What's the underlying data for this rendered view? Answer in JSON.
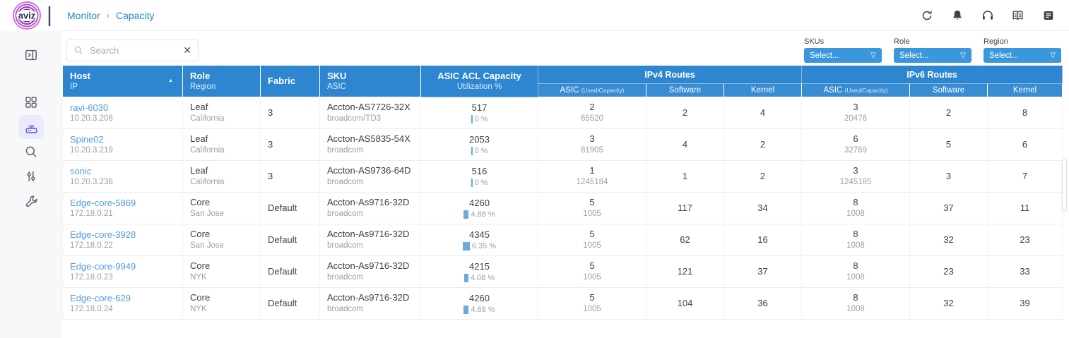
{
  "brand": {
    "name": "aviz"
  },
  "breadcrumb": {
    "items": [
      "Monitor",
      "Capacity"
    ],
    "separator": "›"
  },
  "icons": {
    "sort_asc": "▲",
    "dropdown_arrow": "▽",
    "clear": "✕"
  },
  "toolbar": {
    "search_placeholder": "Search",
    "search_value": "",
    "filters": [
      {
        "label": "SKUs",
        "value": "Select..."
      },
      {
        "label": "Role",
        "value": "Select..."
      },
      {
        "label": "Region",
        "value": "Select..."
      }
    ]
  },
  "table": {
    "header": {
      "host": {
        "main": "Host",
        "sub": "IP"
      },
      "role": {
        "main": "Role",
        "sub": "Region"
      },
      "fabric": {
        "main": "Fabric"
      },
      "sku": {
        "main": "SKU",
        "sub": "ASIC"
      },
      "acl": {
        "main": "ASIC ACL Capacity",
        "sub": "Utilization %"
      },
      "groups": [
        "IPv4 Routes",
        "IPv6 Routes"
      ],
      "sub": {
        "asic": "ASIC",
        "asic_suffix": "(Used/Capacity)",
        "software": "Software",
        "kernel": "Kernel"
      }
    },
    "rows": [
      {
        "host": "ravi-6030",
        "ip": "10.20.3.206",
        "role": "Leaf",
        "region": "California",
        "fabric": "3",
        "sku": "Accton-AS7726-32X",
        "asic": "broadcom/TD3",
        "acl_cap": "517",
        "util_label": "0 %",
        "util_pct": 0,
        "v4": {
          "asic_used": "2",
          "asic_cap": "65520",
          "software": "2",
          "kernel": "4"
        },
        "v6": {
          "asic_used": "3",
          "asic_cap": "20476",
          "software": "2",
          "kernel": "8"
        }
      },
      {
        "host": "Spine02",
        "ip": "10.20.3.219",
        "role": "Leaf",
        "region": "California",
        "fabric": "3",
        "sku": "Accton-AS5835-54X",
        "asic": "broadcom",
        "acl_cap": "2053",
        "util_label": "0 %",
        "util_pct": 0,
        "v4": {
          "asic_used": "3",
          "asic_cap": "81905",
          "software": "4",
          "kernel": "2"
        },
        "v6": {
          "asic_used": "6",
          "asic_cap": "32769",
          "software": "5",
          "kernel": "6"
        }
      },
      {
        "host": "sonic",
        "ip": "10.20.3.236",
        "role": "Leaf",
        "region": "California",
        "fabric": "3",
        "sku": "Accton-AS9736-64D",
        "asic": "broadcom",
        "acl_cap": "516",
        "util_label": "0 %",
        "util_pct": 0,
        "v4": {
          "asic_used": "1",
          "asic_cap": "1245184",
          "software": "1",
          "kernel": "2"
        },
        "v6": {
          "asic_used": "3",
          "asic_cap": "1245185",
          "software": "3",
          "kernel": "7"
        }
      },
      {
        "host": "Edge-core-5869",
        "ip": "172.18.0.21",
        "role": "Core",
        "region": "San Jose",
        "fabric": "Default",
        "sku": "Accton-As9716-32D",
        "asic": "broadcom",
        "acl_cap": "4260",
        "util_label": "4.88 %",
        "util_pct": 4.88,
        "v4": {
          "asic_used": "5",
          "asic_cap": "1005",
          "software": "117",
          "kernel": "34"
        },
        "v6": {
          "asic_used": "8",
          "asic_cap": "1008",
          "software": "37",
          "kernel": "11"
        }
      },
      {
        "host": "Edge-core-3928",
        "ip": "172.18.0.22",
        "role": "Core",
        "region": "San Jose",
        "fabric": "Default",
        "sku": "Accton-As9716-32D",
        "asic": "broadcom",
        "acl_cap": "4345",
        "util_label": "6.35 %",
        "util_pct": 6.35,
        "v4": {
          "asic_used": "5",
          "asic_cap": "1005",
          "software": "62",
          "kernel": "16"
        },
        "v6": {
          "asic_used": "8",
          "asic_cap": "1008",
          "software": "32",
          "kernel": "23"
        }
      },
      {
        "host": "Edge-core-9949",
        "ip": "172.18.0.23",
        "role": "Core",
        "region": "NYK",
        "fabric": "Default",
        "sku": "Accton-As9716-32D",
        "asic": "broadcom",
        "acl_cap": "4215",
        "util_label": "4.08 %",
        "util_pct": 4.08,
        "v4": {
          "asic_used": "5",
          "asic_cap": "1005",
          "software": "121",
          "kernel": "37"
        },
        "v6": {
          "asic_used": "8",
          "asic_cap": "1008",
          "software": "23",
          "kernel": "33"
        }
      },
      {
        "host": "Edge-core-629",
        "ip": "172.18.0.24",
        "role": "Core",
        "region": "NYK",
        "fabric": "Default",
        "sku": "Accton-As9716-32D",
        "asic": "broadcom",
        "acl_cap": "4260",
        "util_label": "4.88 %",
        "util_pct": 4.88,
        "v4": {
          "asic_used": "5",
          "asic_cap": "1005",
          "software": "104",
          "kernel": "36"
        },
        "v6": {
          "asic_used": "8",
          "asic_cap": "1008",
          "software": "32",
          "kernel": "39"
        }
      }
    ]
  },
  "colors": {
    "header_blue": "#2e86d0",
    "dropdown_blue": "#3b97dc",
    "link_blue": "#4f9be0",
    "active_icon": "#5d5fef",
    "util_bar": "#68aae2"
  }
}
